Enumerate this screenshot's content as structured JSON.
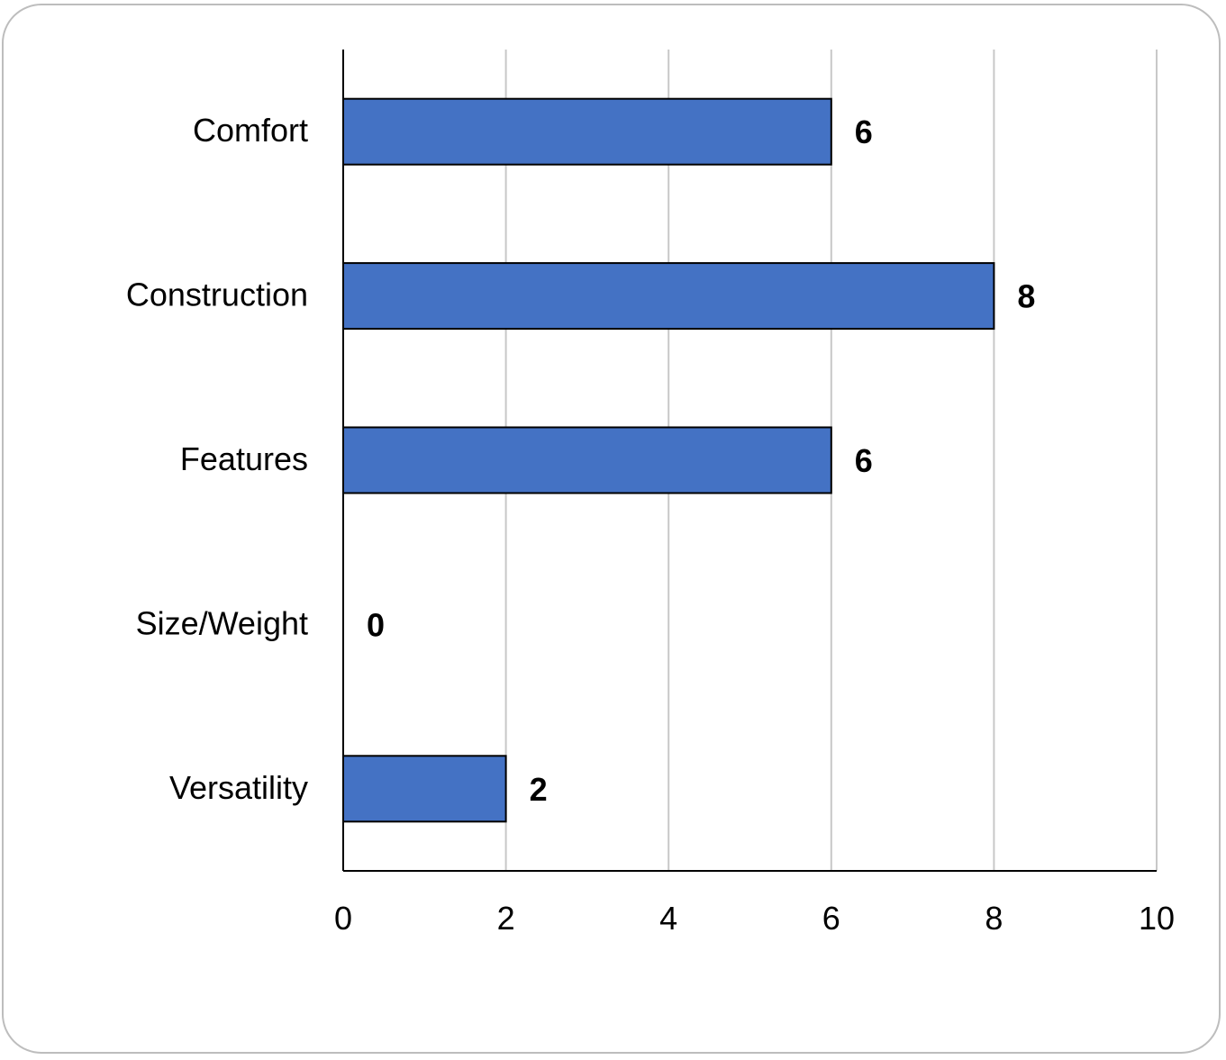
{
  "chart_data": {
    "type": "bar",
    "orientation": "horizontal",
    "categories": [
      "Comfort",
      "Construction",
      "Features",
      "Size/Weight",
      "Versatility"
    ],
    "values": [
      6,
      8,
      6,
      0,
      2
    ],
    "data_labels": [
      "6",
      "8",
      "6",
      "0",
      "2"
    ],
    "xlim": [
      0,
      10
    ],
    "x_ticks": [
      0,
      2,
      4,
      6,
      8,
      10
    ],
    "x_tick_labels": [
      "0",
      "2",
      "4",
      "6",
      "8",
      "10"
    ],
    "grid": "vertical",
    "legend": "none",
    "colors": {
      "bar_fill": "#4472C4",
      "bar_stroke": "#000000",
      "grid": "#c8c8c8",
      "axis": "#000000"
    }
  }
}
